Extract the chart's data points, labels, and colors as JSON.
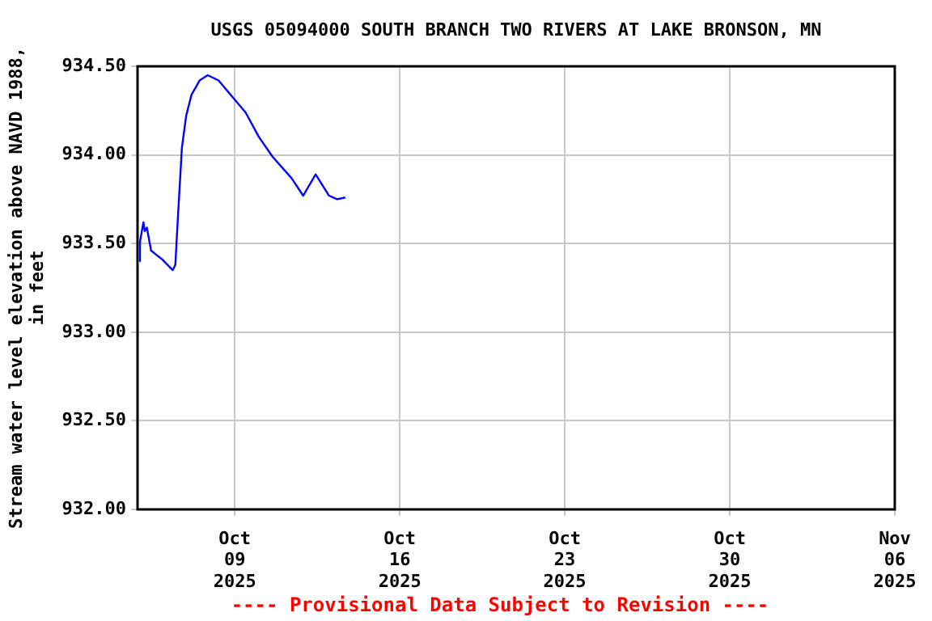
{
  "chart_data": {
    "type": "line",
    "title": "USGS 05094000 SOUTH BRANCH TWO RIVERS AT LAKE BRONSON, MN",
    "ylabel": "Stream water level elevation above NAVD 1988, in feet",
    "x": [
      "2025-10-04T23:00",
      "2025-10-04T23:30",
      "2025-10-05T03:00",
      "2025-10-05T04:20",
      "2025-10-05T06:30",
      "2025-10-05T10:50",
      "2025-10-05T22:10",
      "2025-10-06T08:50",
      "2025-10-06T11:30",
      "2025-10-06T14:20",
      "2025-10-06T18:10",
      "2025-10-06T22:30",
      "2025-10-07T04:00",
      "2025-10-07T12:10",
      "2025-10-07T20:25",
      "2025-10-08T07:30",
      "2025-10-08T21:10",
      "2025-10-09T11:00",
      "2025-10-10T00:40",
      "2025-10-10T14:25",
      "2025-10-11T09:40",
      "2025-10-11T21:40",
      "2025-10-12T10:20",
      "2025-10-13T00:00",
      "2025-10-13T08:10",
      "2025-10-13T16:30"
    ],
    "series": [
      {
        "color": "#0000ff",
        "values": [
          933.4,
          933.51,
          933.62,
          933.57,
          933.59,
          933.46,
          933.41,
          933.35,
          933.38,
          933.67,
          934.04,
          934.22,
          934.34,
          934.42,
          934.45,
          934.42,
          934.33,
          934.24,
          934.1,
          933.99,
          933.87,
          933.77,
          933.89,
          933.77,
          933.75,
          933.76
        ]
      }
    ],
    "xlim": [
      "2025-10-04T21:00",
      "2025-11-06T00:00"
    ],
    "xticks": [
      {
        "value": "2025-10-09",
        "label": "Oct 09 2025"
      },
      {
        "value": "2025-10-16",
        "label": "Oct 16 2025"
      },
      {
        "value": "2025-10-23",
        "label": "Oct 23 2025"
      },
      {
        "value": "2025-10-30",
        "label": "Oct 30 2025"
      },
      {
        "value": "2025-11-06",
        "label": "Nov 06 2025"
      }
    ],
    "ylim": [
      932.0,
      934.5
    ],
    "yticks": [
      {
        "value": 932.0,
        "label": "932.00"
      },
      {
        "value": 932.5,
        "label": "932.50"
      },
      {
        "value": 933.0,
        "label": "933.00"
      },
      {
        "value": 933.5,
        "label": "933.50"
      },
      {
        "value": 934.0,
        "label": "934.00"
      },
      {
        "value": 934.5,
        "label": "934.50"
      }
    ],
    "grid": true,
    "marker": "none",
    "line_style": "solid",
    "annotations": [
      "---- Provisional Data Subject to Revision ----"
    ]
  }
}
